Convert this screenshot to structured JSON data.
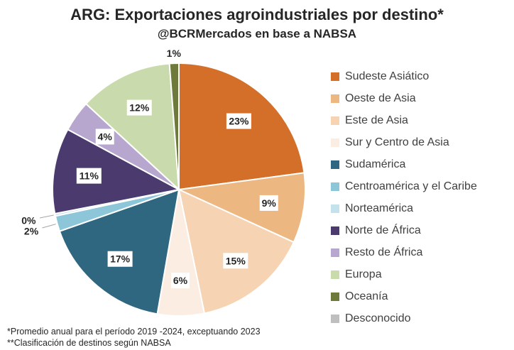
{
  "title": "ARG: Exportaciones agroindustriales por destino*",
  "subtitle": "@BCRMercados en base a NABSA",
  "footnotes": [
    "*Promedio anual para el período 2019 -2024, exceptuando 2023",
    "**Clasificación de destinos según NABSA"
  ],
  "chart_data": {
    "type": "pie",
    "title": "ARG: Exportaciones agroindustriales por destino*",
    "legend_position": "right",
    "slices": [
      {
        "label": "Sudeste Asiático",
        "value": 23,
        "display": "23%",
        "color": "#D46F2A"
      },
      {
        "label": "Oeste de Asia",
        "value": 9,
        "display": "9%",
        "color": "#EDB782"
      },
      {
        "label": "Este de Asia",
        "value": 15,
        "display": "15%",
        "color": "#F6D3B2"
      },
      {
        "label": "Sur y Centro de Asia",
        "value": 6,
        "display": "6%",
        "color": "#FBEDE1"
      },
      {
        "label": "Sudamérica",
        "value": 17,
        "display": "17%",
        "color": "#2F6680"
      },
      {
        "label": "Centroamérica y el Caribe",
        "value": 2,
        "display": "2%",
        "color": "#8CC6D8"
      },
      {
        "label": "Norteamérica",
        "value": 0.3,
        "display": "0%",
        "color": "#C3E2EC"
      },
      {
        "label": "Norte de África",
        "value": 11,
        "display": "11%",
        "color": "#4A3A6E"
      },
      {
        "label": "Resto de África",
        "value": 4,
        "display": "4%",
        "color": "#B7A7CF"
      },
      {
        "label": "Europa",
        "value": 12,
        "display": "12%",
        "color": "#C9DBAC"
      },
      {
        "label": "Oceanía",
        "value": 1.2,
        "display": "1%",
        "color": "#6E7A3B"
      },
      {
        "label": "Desconocido",
        "value": 0,
        "display": "",
        "color": "#BFBFBF"
      }
    ]
  }
}
